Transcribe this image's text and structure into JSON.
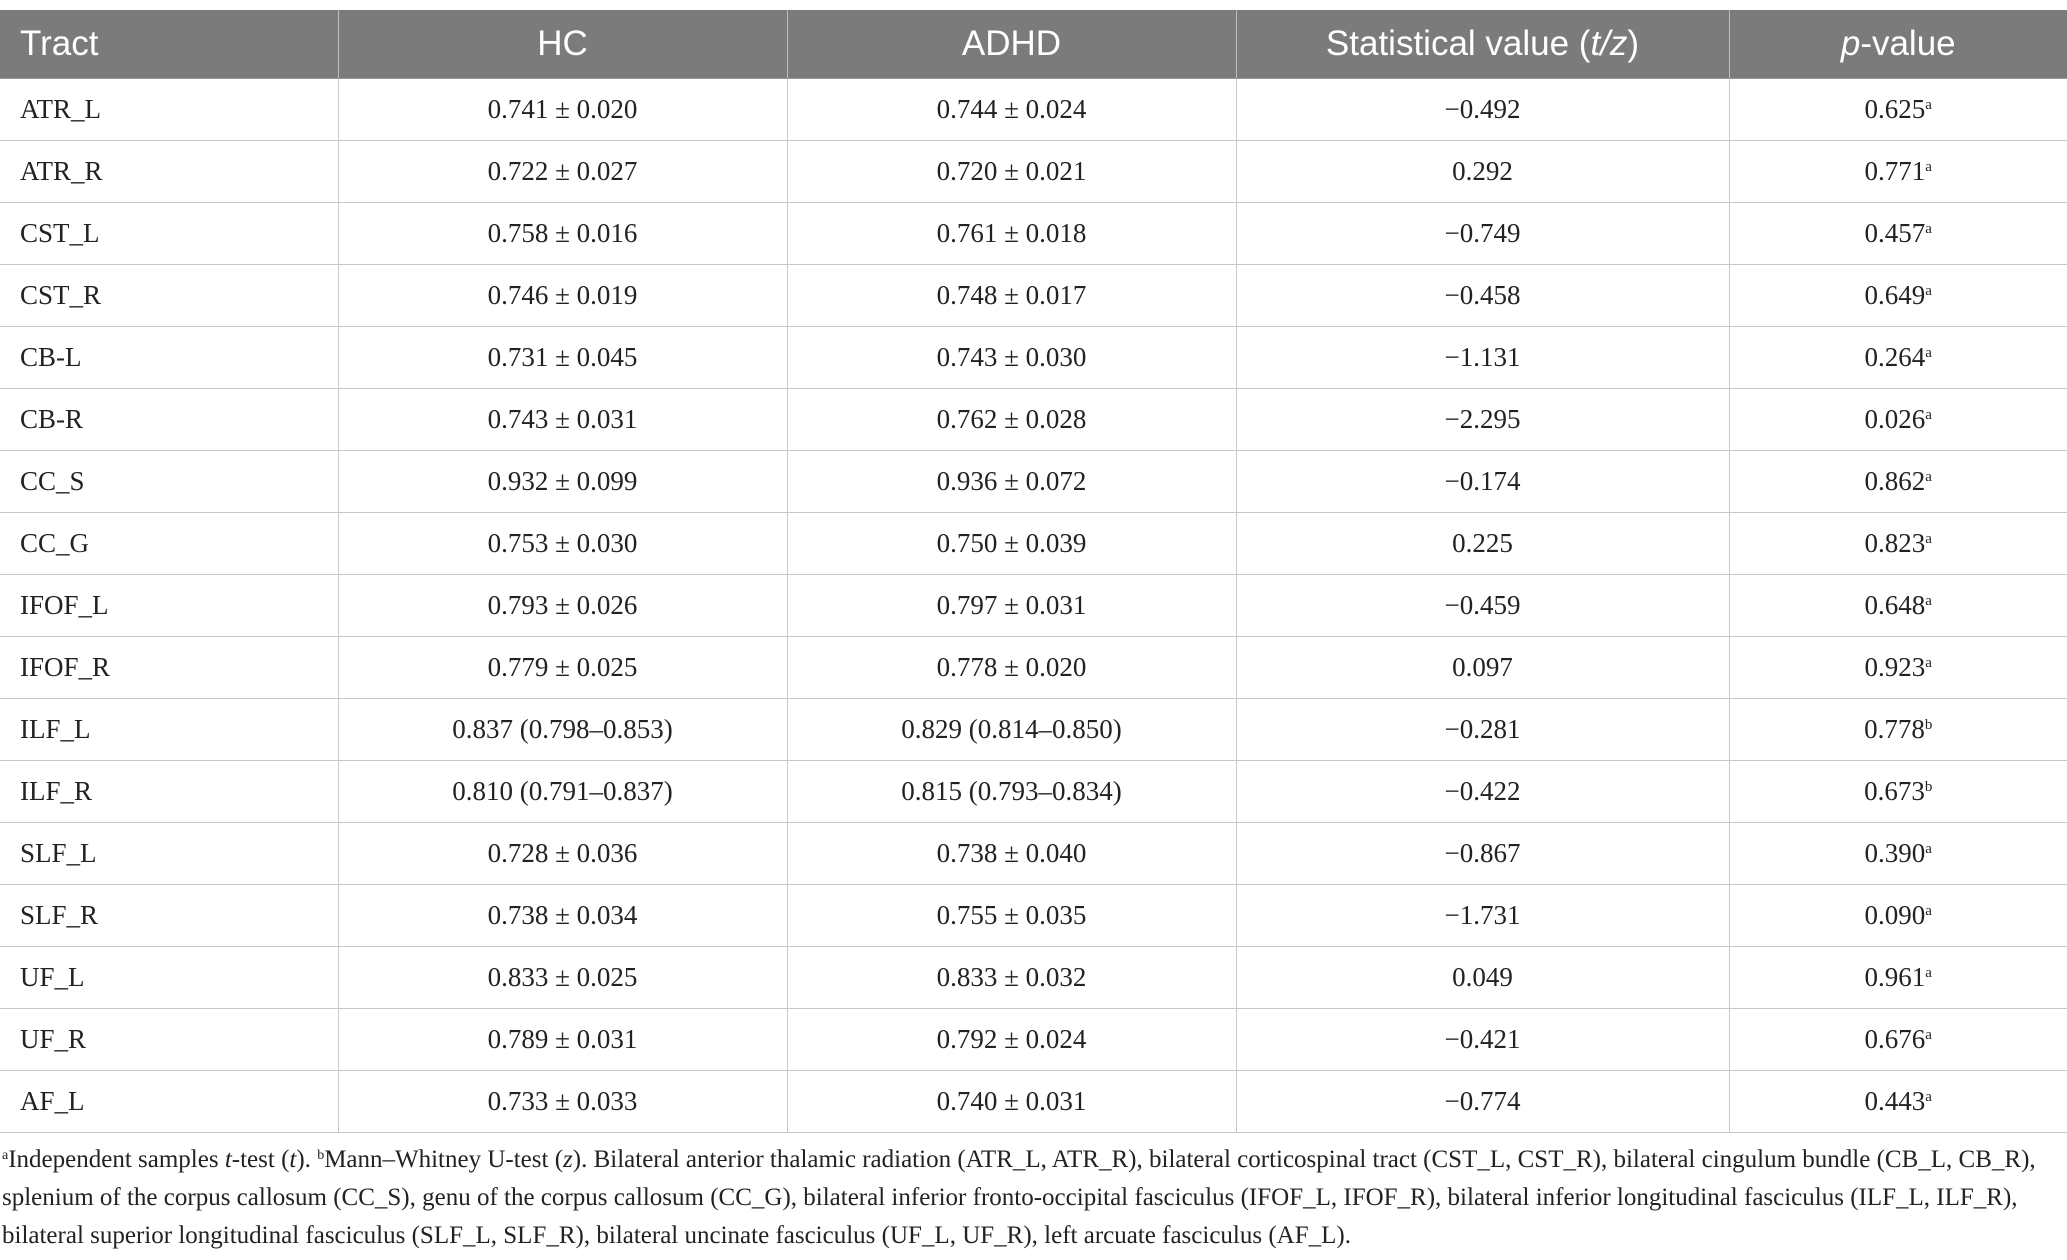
{
  "table": {
    "headers": {
      "tract": "Tract",
      "hc": "HC",
      "adhd": "ADHD",
      "stat_prefix": "Statistical value (",
      "stat_var": "t/z",
      "stat_suffix": ")",
      "p_var": "p",
      "p_suffix": "-value"
    },
    "rows": [
      {
        "tract": "ATR_L",
        "hc": "0.741 ± 0.020",
        "adhd": "0.744 ± 0.024",
        "stat": "−0.492",
        "p": "0.625",
        "note": "a"
      },
      {
        "tract": "ATR_R",
        "hc": "0.722 ± 0.027",
        "adhd": "0.720 ± 0.021",
        "stat": "0.292",
        "p": "0.771",
        "note": "a"
      },
      {
        "tract": "CST_L",
        "hc": "0.758 ± 0.016",
        "adhd": "0.761 ± 0.018",
        "stat": "−0.749",
        "p": "0.457",
        "note": "a"
      },
      {
        "tract": "CST_R",
        "hc": "0.746 ± 0.019",
        "adhd": "0.748 ± 0.017",
        "stat": "−0.458",
        "p": "0.649",
        "note": "a"
      },
      {
        "tract": "CB-L",
        "hc": "0.731 ± 0.045",
        "adhd": "0.743 ± 0.030",
        "stat": "−1.131",
        "p": "0.264",
        "note": "a"
      },
      {
        "tract": "CB-R",
        "hc": "0.743 ± 0.031",
        "adhd": "0.762 ± 0.028",
        "stat": "−2.295",
        "p": "0.026",
        "note": "a"
      },
      {
        "tract": "CC_S",
        "hc": "0.932 ± 0.099",
        "adhd": "0.936 ± 0.072",
        "stat": "−0.174",
        "p": "0.862",
        "note": "a"
      },
      {
        "tract": "CC_G",
        "hc": "0.753 ± 0.030",
        "adhd": "0.750 ± 0.039",
        "stat": "0.225",
        "p": "0.823",
        "note": "a"
      },
      {
        "tract": "IFOF_L",
        "hc": "0.793 ± 0.026",
        "adhd": "0.797 ± 0.031",
        "stat": "−0.459",
        "p": "0.648",
        "note": "a"
      },
      {
        "tract": "IFOF_R",
        "hc": "0.779 ± 0.025",
        "adhd": "0.778 ± 0.020",
        "stat": "0.097",
        "p": "0.923",
        "note": "a"
      },
      {
        "tract": "ILF_L",
        "hc": "0.837 (0.798–0.853)",
        "adhd": "0.829 (0.814–0.850)",
        "stat": "−0.281",
        "p": "0.778",
        "note": "b"
      },
      {
        "tract": "ILF_R",
        "hc": "0.810 (0.791–0.837)",
        "adhd": "0.815 (0.793–0.834)",
        "stat": "−0.422",
        "p": "0.673",
        "note": "b"
      },
      {
        "tract": "SLF_L",
        "hc": "0.728 ± 0.036",
        "adhd": "0.738 ± 0.040",
        "stat": "−0.867",
        "p": "0.390",
        "note": "a"
      },
      {
        "tract": "SLF_R",
        "hc": "0.738 ± 0.034",
        "adhd": "0.755 ± 0.035",
        "stat": "−1.731",
        "p": "0.090",
        "note": "a"
      },
      {
        "tract": "UF_L",
        "hc": "0.833 ± 0.025",
        "adhd": "0.833 ± 0.032",
        "stat": "0.049",
        "p": "0.961",
        "note": "a"
      },
      {
        "tract": "UF_R",
        "hc": "0.789 ± 0.031",
        "adhd": "0.792 ± 0.024",
        "stat": "−0.421",
        "p": "0.676",
        "note": "a"
      },
      {
        "tract": "AF_L",
        "hc": "0.733 ± 0.033",
        "adhd": "0.740 ± 0.031",
        "stat": "−0.774",
        "p": "0.443",
        "note": "a"
      }
    ]
  },
  "footnote": {
    "mark_a": "a",
    "a_text_1": "Independent samples ",
    "a_var": "t",
    "a_text_2": "-test (",
    "a_var2": "t",
    "a_text_3": "). ",
    "mark_b": "b",
    "b_text_1": "Mann–Whitney U-test (",
    "b_var": "z",
    "b_text_2": "). Bilateral anterior thalamic radiation (ATR_L, ATR_R), bilateral corticospinal tract (CST_L, CST_R), bilateral cingulum bundle (CB_L, CB_R), splenium of the corpus callosum (CC_S), genu of the corpus callosum (CC_G), bilateral inferior fronto-occipital fasciculus (IFOF_L, IFOF_R), bilateral inferior longitudinal fasciculus (ILF_L, ILF_R), bilateral superior longitudinal fasciculus (SLF_L, SLF_R), bilateral uncinate fasciculus (UF_L, UF_R), left arcuate fasciculus (AF_L)."
  }
}
